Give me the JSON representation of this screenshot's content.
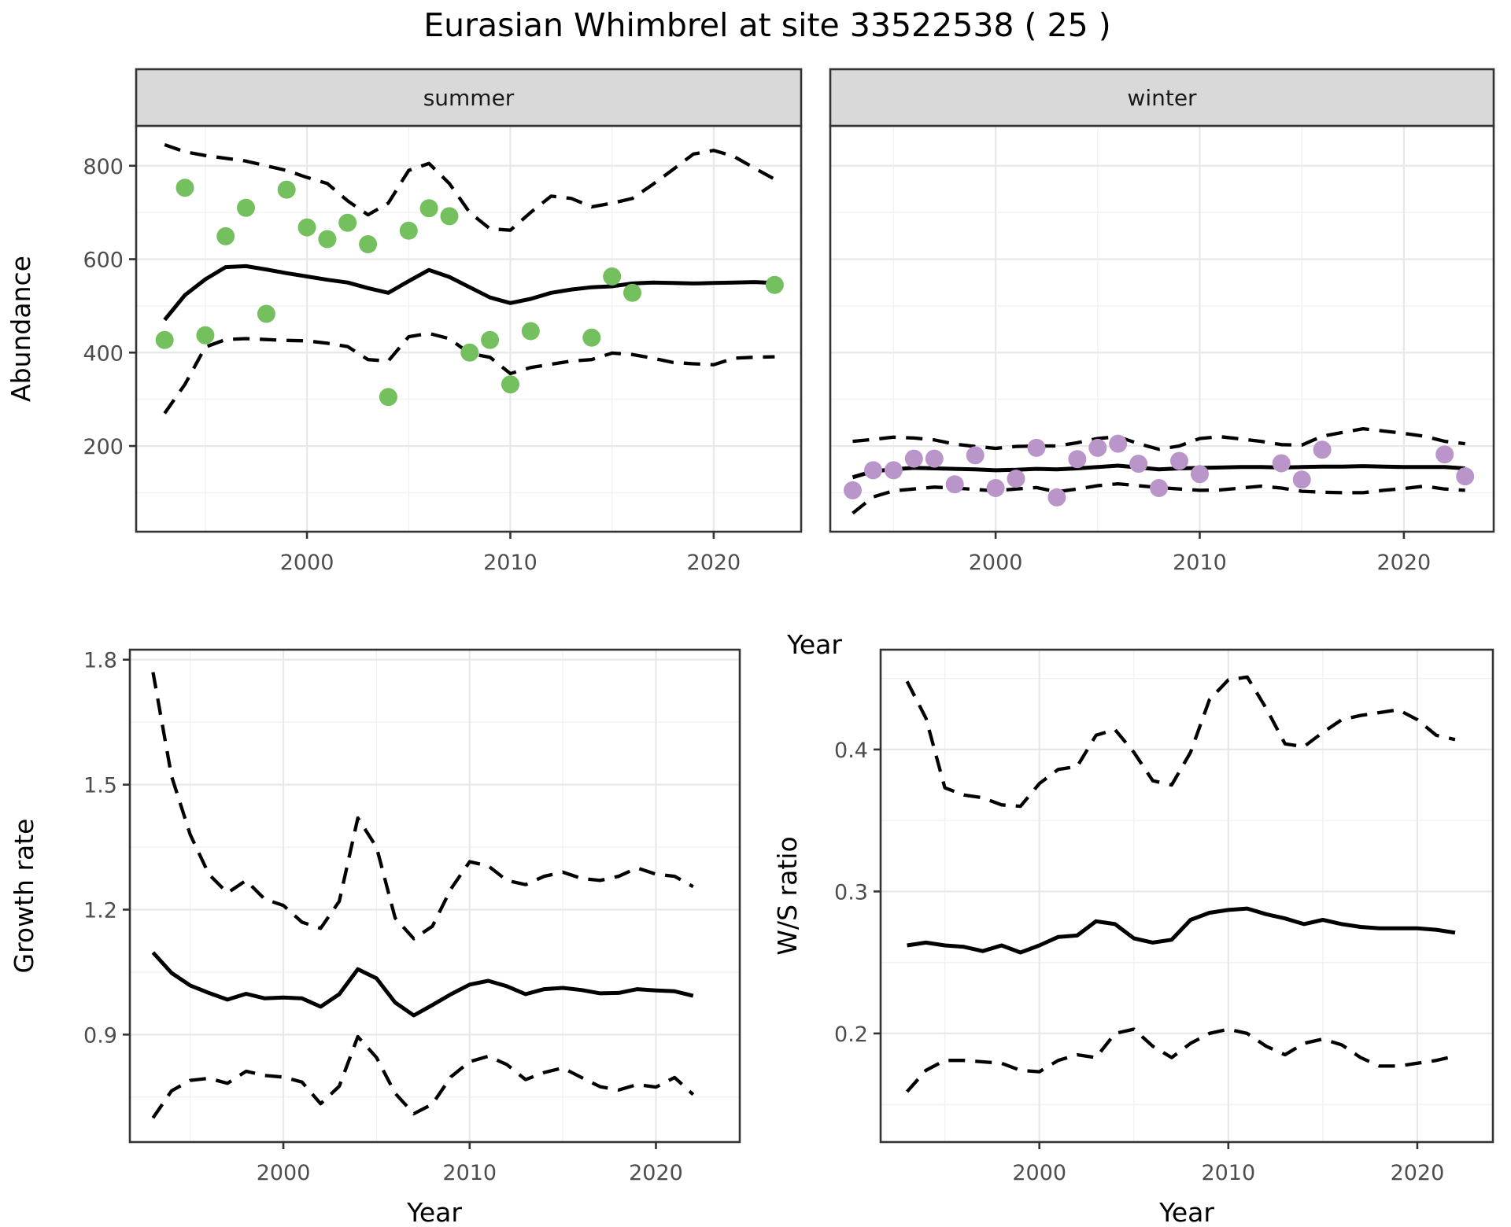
{
  "title": "Eurasian Whimbrel at site 33522538 ( 25 )",
  "colors": {
    "background": "#ffffff",
    "panel_bg": "#ffffff",
    "grid_major": "#e8e8e8",
    "grid_minor": "#f1f1f1",
    "panel_border": "#333333",
    "strip_bg": "#d9d9d9",
    "strip_border": "#333333",
    "tick_mark": "#333333",
    "tick_label": "#4d4d4d",
    "fit_line": "#000000",
    "ci_line": "#000000",
    "summer_point": "#74c05e",
    "winter_point": "#b995ca"
  },
  "chart_data": [
    {
      "id": "summer",
      "type": "scatter",
      "strip_label": "summer",
      "xlabel": "Year",
      "ylabel": "Abundance",
      "xlim": [
        1991.6,
        2024.3
      ],
      "ylim": [
        16.5,
        885.5
      ],
      "x_ticks": {
        "values": [
          2000,
          2010,
          2020
        ],
        "labels": [
          "2000",
          "2010",
          "2020"
        ]
      },
      "x_minor": [
        1995,
        2005,
        2015
      ],
      "y_ticks": {
        "values": [
          200,
          400,
          600,
          800
        ],
        "labels": [
          "200",
          "400",
          "600",
          "800"
        ]
      },
      "y_minor": [
        100,
        300,
        500,
        700
      ],
      "grid": true,
      "legend": "none",
      "points": {
        "years": [
          1993,
          1994,
          1995,
          1996,
          1997,
          1998,
          1999,
          2000,
          2001,
          2002,
          2003,
          2004,
          2005,
          2006,
          2007,
          2008,
          2009,
          2010,
          2011,
          2014,
          2015,
          2016,
          2023
        ],
        "values": [
          427,
          753,
          437,
          649,
          710,
          483,
          749,
          668,
          643,
          678,
          632,
          305,
          661,
          709,
          692,
          400,
          427,
          332,
          446,
          432,
          563,
          528,
          545
        ]
      },
      "fit": {
        "years": [
          1993,
          1994,
          1995,
          1996,
          1997,
          1998,
          1999,
          2000,
          2001,
          2002,
          2003,
          2004,
          2005,
          2006,
          2007,
          2008,
          2009,
          2010,
          2011,
          2012,
          2013,
          2014,
          2015,
          2016,
          2017,
          2018,
          2019,
          2020,
          2021,
          2022,
          2023
        ],
        "values": [
          470,
          523,
          557,
          583,
          585,
          578,
          570,
          563,
          556,
          550,
          538,
          528,
          553,
          577,
          562,
          540,
          518,
          506,
          515,
          528,
          535,
          540,
          542,
          548,
          550,
          549,
          548,
          549,
          550,
          551,
          549
        ]
      },
      "ci_upper": {
        "years": [
          1993,
          1994,
          1995,
          1996,
          1997,
          1998,
          1999,
          2000,
          2001,
          2002,
          2003,
          2004,
          2005,
          2006,
          2007,
          2008,
          2009,
          2010,
          2011,
          2012,
          2013,
          2014,
          2015,
          2016,
          2017,
          2018,
          2019,
          2020,
          2021,
          2022,
          2023
        ],
        "values": [
          845,
          830,
          822,
          816,
          810,
          800,
          790,
          775,
          762,
          725,
          695,
          720,
          790,
          805,
          762,
          700,
          665,
          662,
          700,
          735,
          730,
          712,
          720,
          730,
          760,
          792,
          825,
          833,
          820,
          795,
          771
        ]
      },
      "ci_lower": {
        "years": [
          1993,
          1994,
          1995,
          1996,
          1997,
          1998,
          1999,
          2000,
          2001,
          2002,
          2003,
          2004,
          2005,
          2006,
          2007,
          2008,
          2009,
          2010,
          2011,
          2012,
          2013,
          2014,
          2015,
          2016,
          2017,
          2018,
          2019,
          2020,
          2021,
          2022,
          2023
        ],
        "values": [
          270,
          332,
          412,
          428,
          430,
          428,
          426,
          425,
          420,
          413,
          385,
          382,
          434,
          441,
          430,
          398,
          390,
          355,
          368,
          375,
          382,
          385,
          399,
          396,
          388,
          379,
          376,
          374,
          388,
          390,
          391
        ]
      }
    },
    {
      "id": "winter",
      "type": "scatter",
      "strip_label": "winter",
      "xlabel": "Year",
      "ylabel": "Abundance",
      "xlim": [
        1991.9,
        2024.4
      ],
      "ylim": [
        16.5,
        885.5
      ],
      "x_ticks": {
        "values": [
          2000,
          2010,
          2020
        ],
        "labels": [
          "2000",
          "2010",
          "2020"
        ]
      },
      "x_minor": [
        1995,
        2005,
        2015
      ],
      "y_ticks": {
        "values": [
          200,
          400,
          600,
          800
        ],
        "labels": [
          "200",
          "400",
          "600",
          "800"
        ]
      },
      "y_minor": [
        100,
        300,
        500,
        700
      ],
      "grid": true,
      "legend": "none",
      "points": {
        "years": [
          1993,
          1994,
          1995,
          1996,
          1997,
          1998,
          1999,
          2000,
          2001,
          2002,
          2003,
          2004,
          2005,
          2006,
          2007,
          2008,
          2009,
          2010,
          2014,
          2015,
          2016,
          2022,
          2023
        ],
        "values": [
          105,
          148,
          148,
          173,
          173,
          118,
          180,
          110,
          130,
          196,
          90,
          172,
          196,
          205,
          162,
          110,
          168,
          140,
          163,
          128,
          192,
          182,
          135
        ]
      },
      "fit": {
        "years": [
          1993,
          1994,
          1995,
          1996,
          1997,
          1998,
          1999,
          2000,
          2001,
          2002,
          2003,
          2004,
          2005,
          2006,
          2007,
          2008,
          2009,
          2010,
          2011,
          2012,
          2013,
          2014,
          2015,
          2016,
          2017,
          2018,
          2019,
          2020,
          2021,
          2022,
          2023
        ],
        "values": [
          133,
          146,
          150,
          153,
          152,
          151,
          150,
          148,
          149,
          151,
          150,
          152,
          155,
          158,
          154,
          150,
          152,
          153,
          154,
          155,
          155,
          154,
          155,
          156,
          156,
          157,
          156,
          155,
          155,
          155,
          152
        ]
      },
      "ci_upper": {
        "years": [
          1993,
          1994,
          1995,
          1996,
          1997,
          1998,
          1999,
          2000,
          2001,
          2002,
          2003,
          2004,
          2005,
          2006,
          2007,
          2008,
          2009,
          2010,
          2011,
          2012,
          2013,
          2014,
          2015,
          2016,
          2017,
          2018,
          2019,
          2020,
          2021,
          2022,
          2023
        ],
        "values": [
          210,
          214,
          219,
          217,
          213,
          204,
          199,
          195,
          199,
          200,
          200,
          207,
          216,
          220,
          205,
          193,
          200,
          216,
          220,
          215,
          210,
          203,
          202,
          221,
          229,
          237,
          232,
          227,
          221,
          210,
          205
        ]
      },
      "ci_lower": {
        "years": [
          1993,
          1994,
          1995,
          1996,
          1997,
          1998,
          1999,
          2000,
          2001,
          2002,
          2003,
          2004,
          2005,
          2006,
          2007,
          2008,
          2009,
          2010,
          2011,
          2012,
          2013,
          2014,
          2015,
          2016,
          2017,
          2018,
          2019,
          2020,
          2021,
          2022,
          2023
        ],
        "values": [
          56,
          91,
          104,
          108,
          112,
          110,
          107,
          104,
          108,
          111,
          102,
          108,
          115,
          119,
          115,
          111,
          108,
          105,
          106,
          110,
          114,
          110,
          103,
          101,
          100,
          100,
          105,
          109,
          114,
          108,
          105
        ]
      }
    },
    {
      "id": "growth-rate",
      "type": "line",
      "strip_label": "",
      "xlabel": "Year",
      "ylabel": "Growth rate",
      "xlim": [
        1991.76,
        2024.5
      ],
      "ylim": [
        0.642,
        1.824
      ],
      "x_ticks": {
        "values": [
          2000,
          2010,
          2020
        ],
        "labels": [
          "2000",
          "2010",
          "2020"
        ]
      },
      "x_minor": [
        1995,
        2005,
        2015
      ],
      "y_ticks": {
        "values": [
          0.9,
          1.2,
          1.5,
          1.8
        ],
        "labels": [
          "0.9",
          "1.2",
          "1.5",
          "1.8"
        ]
      },
      "y_minor": [
        0.75,
        1.05,
        1.35,
        1.65
      ],
      "grid": true,
      "legend": "none",
      "fit": {
        "years": [
          1993,
          1994,
          1995,
          1996,
          1997,
          1998,
          1999,
          2000,
          2001,
          2002,
          2003,
          2004,
          2005,
          2006,
          2007,
          2008,
          2009,
          2010,
          2011,
          2012,
          2013,
          2014,
          2015,
          2016,
          2017,
          2018,
          2019,
          2020,
          2021,
          2022
        ],
        "values": [
          1.097,
          1.048,
          1.018,
          1.0,
          0.984,
          0.998,
          0.987,
          0.989,
          0.987,
          0.967,
          0.997,
          1.057,
          1.035,
          0.977,
          0.946,
          0.971,
          0.997,
          1.02,
          1.029,
          1.016,
          0.997,
          1.009,
          1.012,
          1.007,
          0.999,
          1.0,
          1.009,
          1.006,
          1.004,
          0.993
        ]
      },
      "ci_upper": {
        "years": [
          1993,
          1994,
          1995,
          1996,
          1997,
          1998,
          1999,
          2000,
          2001,
          2002,
          2003,
          2004,
          2005,
          2006,
          2007,
          2008,
          2009,
          2010,
          2011,
          2012,
          2013,
          2014,
          2015,
          2016,
          2017,
          2018,
          2019,
          2020,
          2021,
          2022
        ],
        "values": [
          1.77,
          1.52,
          1.38,
          1.285,
          1.24,
          1.27,
          1.225,
          1.21,
          1.17,
          1.155,
          1.22,
          1.42,
          1.35,
          1.18,
          1.13,
          1.16,
          1.25,
          1.315,
          1.305,
          1.27,
          1.26,
          1.28,
          1.29,
          1.275,
          1.27,
          1.28,
          1.3,
          1.285,
          1.28,
          1.255
        ]
      },
      "ci_lower": {
        "years": [
          1993,
          1994,
          1995,
          1996,
          1997,
          1998,
          1999,
          2000,
          2001,
          2002,
          2003,
          2004,
          2005,
          2006,
          2007,
          2008,
          2009,
          2010,
          2011,
          2012,
          2013,
          2014,
          2015,
          2016,
          2017,
          2018,
          2019,
          2020,
          2021,
          2022
        ],
        "values": [
          0.7,
          0.765,
          0.79,
          0.795,
          0.783,
          0.812,
          0.802,
          0.798,
          0.786,
          0.734,
          0.776,
          0.895,
          0.845,
          0.759,
          0.71,
          0.733,
          0.799,
          0.835,
          0.848,
          0.828,
          0.792,
          0.809,
          0.82,
          0.797,
          0.775,
          0.767,
          0.78,
          0.774,
          0.797,
          0.756
        ]
      }
    },
    {
      "id": "ws-ratio",
      "type": "line",
      "strip_label": "",
      "xlabel": "Year",
      "ylabel": "W/S ratio",
      "xlim": [
        1991.6,
        2024.0
      ],
      "ylim": [
        0.1235,
        0.4703
      ],
      "x_ticks": {
        "values": [
          2000,
          2010,
          2020
        ],
        "labels": [
          "2000",
          "2010",
          "2020"
        ]
      },
      "x_minor": [
        1995,
        2005,
        2015
      ],
      "y_ticks": {
        "values": [
          0.2,
          0.3,
          0.4
        ],
        "labels": [
          "0.2",
          "0.3",
          "0.4"
        ]
      },
      "y_minor": [
        0.15,
        0.25,
        0.35,
        0.45
      ],
      "grid": true,
      "legend": "none",
      "fit": {
        "years": [
          1993,
          1994,
          1995,
          1996,
          1997,
          1998,
          1999,
          2000,
          2001,
          2002,
          2003,
          2004,
          2005,
          2006,
          2007,
          2008,
          2009,
          2010,
          2011,
          2012,
          2013,
          2014,
          2015,
          2016,
          2017,
          2018,
          2019,
          2020,
          2021,
          2022
        ],
        "values": [
          0.262,
          0.264,
          0.262,
          0.261,
          0.258,
          0.262,
          0.257,
          0.262,
          0.268,
          0.269,
          0.279,
          0.277,
          0.267,
          0.264,
          0.266,
          0.28,
          0.285,
          0.287,
          0.288,
          0.284,
          0.281,
          0.277,
          0.28,
          0.277,
          0.275,
          0.274,
          0.274,
          0.274,
          0.273,
          0.271
        ]
      },
      "ci_upper": {
        "years": [
          1993,
          1994,
          1995,
          1996,
          1997,
          1998,
          1999,
          2000,
          2001,
          2002,
          2003,
          2004,
          2005,
          2006,
          2007,
          2008,
          2009,
          2010,
          2011,
          2012,
          2013,
          2014,
          2015,
          2016,
          2017,
          2018,
          2019,
          2020,
          2021,
          2022
        ],
        "values": [
          0.448,
          0.422,
          0.373,
          0.368,
          0.366,
          0.361,
          0.36,
          0.376,
          0.386,
          0.388,
          0.41,
          0.414,
          0.398,
          0.378,
          0.375,
          0.398,
          0.435,
          0.449,
          0.451,
          0.429,
          0.404,
          0.402,
          0.412,
          0.421,
          0.424,
          0.426,
          0.428,
          0.421,
          0.41,
          0.407
        ]
      },
      "ci_lower": {
        "years": [
          1993,
          1994,
          1995,
          1996,
          1997,
          1998,
          1999,
          2000,
          2001,
          2002,
          2003,
          2004,
          2005,
          2006,
          2007,
          2008,
          2009,
          2010,
          2011,
          2012,
          2013,
          2014,
          2015,
          2016,
          2017,
          2018,
          2019,
          2020,
          2021,
          2022
        ],
        "values": [
          0.159,
          0.174,
          0.181,
          0.181,
          0.18,
          0.179,
          0.174,
          0.173,
          0.181,
          0.185,
          0.183,
          0.2,
          0.203,
          0.191,
          0.183,
          0.193,
          0.2,
          0.203,
          0.2,
          0.191,
          0.185,
          0.193,
          0.196,
          0.192,
          0.183,
          0.177,
          0.177,
          0.179,
          0.181,
          0.184
        ]
      }
    }
  ]
}
